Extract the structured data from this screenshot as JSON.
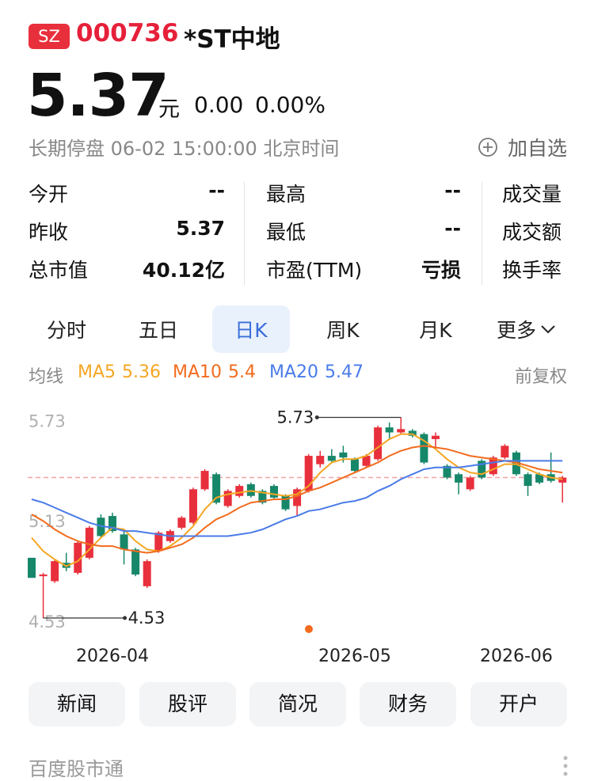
{
  "header": {
    "badge": "SZ",
    "code": "000736",
    "name": "*ST中地"
  },
  "quote": {
    "price": 5.37,
    "unit": "元",
    "change": "0.00",
    "change_pct": "0.00%",
    "status": "长期停盘 06-02 15:00:00 北京时间",
    "add_watch": "加自选"
  },
  "stats": [
    [
      {
        "label": "今开",
        "value": "--"
      },
      {
        "label": "最高",
        "value": "--"
      },
      {
        "label": "成交量"
      }
    ],
    [
      {
        "label": "昨收",
        "value": 5.37
      },
      {
        "label": "最低",
        "value": "--"
      },
      {
        "label": "成交额"
      }
    ],
    [
      {
        "label": "总市值",
        "value": "40.12亿"
      },
      {
        "label": "市盈(TTM)",
        "value": "亏损"
      },
      {
        "label": "换手率"
      }
    ]
  ],
  "tabs": [
    "分时",
    "五日",
    "日K",
    "周K",
    "月K",
    "更多"
  ],
  "legend_title": "均线",
  "adjust": "前复权",
  "chart_data": {
    "type": "candlestick",
    "categories": [
      null,
      null,
      null,
      null,
      null,
      null,
      null,
      "2026-04",
      null,
      null,
      null,
      null,
      null,
      null,
      null,
      null,
      null,
      null,
      null,
      null,
      null,
      null,
      null,
      null,
      null,
      null,
      null,
      null,
      "2026-05",
      null,
      null,
      null,
      null,
      null,
      null,
      null,
      null,
      null,
      null,
      null,
      null,
      null,
      "2026-06",
      null,
      null,
      null,
      null
    ],
    "open": [
      4.89,
      4.78,
      4.75,
      4.86,
      4.8,
      4.89,
      5.13,
      5.14,
      5.03,
      4.94,
      4.72,
      4.93,
      4.99,
      5.07,
      5.1,
      5.3,
      5.39,
      5.2,
      5.26,
      5.33,
      5.29,
      5.32,
      5.26,
      5.2,
      5.29,
      5.45,
      5.5,
      5.52,
      5.48,
      5.44,
      5.48,
      5.67,
      5.64,
      5.65,
      5.63,
      5.6,
      5.44,
      5.39,
      5.3,
      5.47,
      5.39,
      5.49,
      5.52,
      5.39,
      5.39,
      5.39,
      5.34
    ],
    "high": [
      4.89,
      4.8,
      4.88,
      4.92,
      4.99,
      5.08,
      5.15,
      5.16,
      5.05,
      4.95,
      4.88,
      5.05,
      5.06,
      5.14,
      5.31,
      5.42,
      5.4,
      5.3,
      5.33,
      5.34,
      5.3,
      5.33,
      5.27,
      5.31,
      5.51,
      5.53,
      5.54,
      5.56,
      5.49,
      5.51,
      5.68,
      5.7,
      5.73,
      5.66,
      5.64,
      5.64,
      5.45,
      5.4,
      5.38,
      5.48,
      5.5,
      5.57,
      5.53,
      5.4,
      5.4,
      5.52,
      5.38
    ],
    "low": [
      4.77,
      4.53,
      4.74,
      4.81,
      4.79,
      4.88,
      5.01,
      5.04,
      4.85,
      4.78,
      4.71,
      4.92,
      4.98,
      5.06,
      5.09,
      5.29,
      5.21,
      5.19,
      5.25,
      5.25,
      5.21,
      5.24,
      5.17,
      5.14,
      5.28,
      5.43,
      5.46,
      5.46,
      5.4,
      5.43,
      5.47,
      5.6,
      5.63,
      5.61,
      5.45,
      5.54,
      5.36,
      5.27,
      5.29,
      5.36,
      5.38,
      5.48,
      5.38,
      5.26,
      5.33,
      5.34,
      5.22
    ],
    "close": [
      4.77,
      4.79,
      4.87,
      4.83,
      4.98,
      5.07,
      5.02,
      5.05,
      4.94,
      4.79,
      4.87,
      5.04,
      5.05,
      5.13,
      5.3,
      5.41,
      5.22,
      5.29,
      5.32,
      5.26,
      5.22,
      5.25,
      5.18,
      5.3,
      5.5,
      5.5,
      5.47,
      5.49,
      5.41,
      5.5,
      5.67,
      5.64,
      5.66,
      5.62,
      5.46,
      5.62,
      5.37,
      5.34,
      5.37,
      5.37,
      5.49,
      5.56,
      5.39,
      5.32,
      5.34,
      5.35,
      5.37
    ],
    "up_color": "#e8303c",
    "down_color": "#17876a",
    "series": [
      {
        "name": "MA5",
        "color": "#f5a623",
        "values": [
          5.01,
          4.93,
          4.88,
          4.84,
          4.87,
          4.94,
          5.01,
          5.07,
          5.06,
          4.99,
          4.94,
          4.93,
          4.96,
          5.01,
          5.08,
          5.18,
          5.25,
          5.27,
          5.28,
          5.29,
          5.28,
          5.27,
          5.26,
          5.27,
          5.32,
          5.4,
          5.46,
          5.48,
          5.48,
          5.5,
          5.55,
          5.6,
          5.63,
          5.63,
          5.59,
          5.54,
          5.48,
          5.43,
          5.4,
          5.39,
          5.42,
          5.45,
          5.45,
          5.42,
          5.39,
          5.37,
          5.36
        ]
      },
      {
        "name": "MA10",
        "color": "#f26b1d",
        "values": [
          5.15,
          5.11,
          5.06,
          5.02,
          4.99,
          4.97,
          4.96,
          4.96,
          4.94,
          4.93,
          4.92,
          4.93,
          4.95,
          4.97,
          5.01,
          5.07,
          5.12,
          5.15,
          5.19,
          5.22,
          5.23,
          5.24,
          5.24,
          5.26,
          5.29,
          5.31,
          5.34,
          5.37,
          5.4,
          5.43,
          5.46,
          5.5,
          5.53,
          5.55,
          5.56,
          5.55,
          5.54,
          5.52,
          5.5,
          5.49,
          5.48,
          5.47,
          5.46,
          5.44,
          5.42,
          5.41,
          5.4
        ]
      },
      {
        "name": "MA20",
        "color": "#4a7be8",
        "values": [
          5.24,
          5.22,
          5.19,
          5.16,
          5.13,
          5.1,
          5.08,
          5.07,
          5.05,
          5.05,
          5.04,
          5.03,
          5.02,
          5.02,
          5.02,
          5.02,
          5.02,
          5.02,
          5.03,
          5.04,
          5.06,
          5.09,
          5.12,
          5.14,
          5.17,
          5.18,
          5.2,
          5.22,
          5.23,
          5.25,
          5.29,
          5.32,
          5.36,
          5.39,
          5.42,
          5.43,
          5.43,
          5.43,
          5.44,
          5.45,
          5.46,
          5.47,
          5.47,
          5.47,
          5.47,
          5.47,
          5.47
        ]
      }
    ],
    "ylim": [
      4.44,
      5.86
    ],
    "yticks": [
      4.53,
      5.13,
      5.73
    ],
    "prev_close_line": 5.37,
    "annotations": [
      {
        "label": "5.73",
        "value": 5.73,
        "at": "high"
      },
      {
        "label": "4.53",
        "value": 4.53,
        "at": "low"
      }
    ]
  },
  "buttons": [
    "新闻",
    "股评",
    "简况",
    "财务",
    "开户"
  ],
  "footer": "百度股市通"
}
